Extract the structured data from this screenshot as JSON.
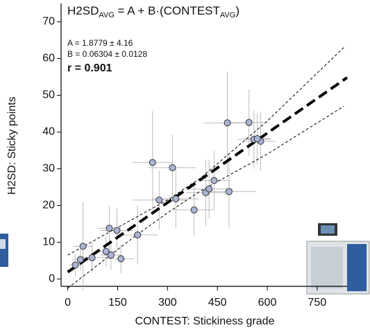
{
  "chart_data": {
    "type": "scatter",
    "title_parts": [
      "H2SD",
      "AVG",
      " = A + B·(CONTEST",
      "AVG",
      ")"
    ],
    "annotations": [
      "A = 1.8779 ± 4.16",
      "B = 0.06304 ± 0.0128",
      "r = 0.901"
    ],
    "x_label": "CONTEST: Stickiness grade",
    "y_label": "H2SD: Sticky points",
    "xlim": [
      -20,
      840
    ],
    "ylim": [
      -2,
      75
    ],
    "xticks": [
      0,
      150,
      300,
      450,
      600,
      750
    ],
    "yticks": [
      0,
      10,
      20,
      30,
      40,
      50,
      60,
      70
    ],
    "series": [
      {
        "color": "#a9b4d6",
        "x": [
          23,
          38,
          46,
          73,
          115,
          125,
          130,
          148,
          160,
          210,
          255,
          275,
          315,
          325,
          380,
          415,
          440,
          425,
          480,
          485,
          545,
          560,
          580,
          570
        ],
        "values": [
          3.8,
          5.3,
          8.9,
          5.8,
          7.5,
          13.8,
          6.5,
          13.2,
          5.5,
          12.0,
          31.7,
          21.5,
          30.3,
          21.8,
          18.8,
          23.5,
          26.8,
          24.5,
          42.5,
          23.8,
          42.6,
          38.0,
          37.5,
          38.2
        ],
        "xerr": [
          20,
          25,
          30,
          40,
          30,
          35,
          30,
          50,
          40,
          60,
          60,
          80,
          70,
          70,
          60,
          60,
          50,
          70,
          70,
          80,
          60,
          50,
          45,
          40
        ],
        "yerr": [
          3,
          3,
          12,
          4,
          4,
          6,
          4,
          6,
          4,
          8,
          14,
          8,
          9,
          8,
          7,
          9,
          8,
          8,
          14,
          10,
          9,
          8,
          8,
          7
        ]
      }
    ],
    "fit": {
      "intercept": 1.8779,
      "slope": 0.06304,
      "color": "#000000"
    },
    "band": {
      "x": [
        0,
        200,
        300,
        400,
        600,
        830
      ],
      "lower": [
        -2.5,
        11.5,
        18,
        24,
        34,
        47
      ],
      "upper": [
        6.5,
        16.5,
        21.5,
        27.5,
        43,
        63
      ]
    }
  }
}
